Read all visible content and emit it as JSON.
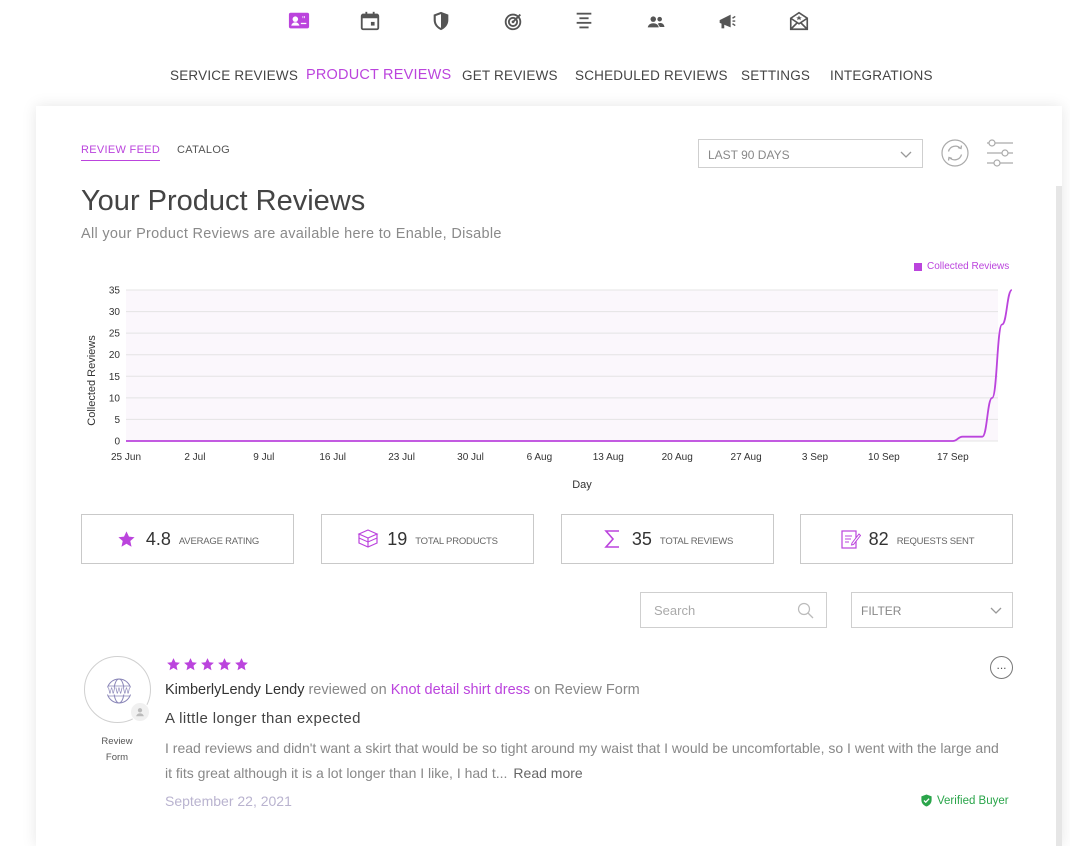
{
  "top_icons": [
    "reviews-icon",
    "calendar-icon",
    "shield-icon",
    "target-icon",
    "align-center-icon",
    "users-icon",
    "megaphone-icon",
    "mail-icon"
  ],
  "nav": [
    {
      "label": "SERVICE REVIEWS"
    },
    {
      "label": "PRODUCT REVIEWS"
    },
    {
      "label": "GET REVIEWS"
    },
    {
      "label": "SCHEDULED REVIEWS"
    },
    {
      "label": "SETTINGS"
    },
    {
      "label": "INTEGRATIONS"
    }
  ],
  "subtabs": {
    "feed": "REVIEW FEED",
    "catalog": "CATALOG"
  },
  "date_range": "LAST 90 DAYS",
  "header": {
    "title": "Your Product Reviews",
    "subtitle": "All your Product Reviews are available here to Enable, Disable"
  },
  "colors": {
    "accent": "#bb44dd",
    "verified": "#2aa54a"
  },
  "chart_data": {
    "type": "line",
    "title": "",
    "xlabel": "Day",
    "ylabel": "Collected Reviews",
    "ylim": [
      0,
      35
    ],
    "yticks": [
      0,
      5,
      10,
      15,
      20,
      25,
      30,
      35
    ],
    "xticks": [
      "25 Jun",
      "2 Jul",
      "9 Jul",
      "16 Jul",
      "23 Jul",
      "30 Jul",
      "6 Aug",
      "13 Aug",
      "20 Aug",
      "27 Aug",
      "3 Sep",
      "10 Sep",
      "17 Sep"
    ],
    "grid": true,
    "legend_position": "top-right",
    "series": [
      {
        "name": "Collected Reviews",
        "x": [
          "25 Jun",
          "17 Sep",
          "18 Sep",
          "20 Sep",
          "21 Sep",
          "22 Sep",
          "23 Sep"
        ],
        "values": [
          0,
          0,
          1,
          1,
          10,
          27,
          35
        ]
      }
    ]
  },
  "stats": [
    {
      "value": "4.8",
      "label": "AVERAGE RATING",
      "icon": "star-icon"
    },
    {
      "value": "19",
      "label": "TOTAL PRODUCTS",
      "icon": "box-icon"
    },
    {
      "value": "35",
      "label": "TOTAL REVIEWS",
      "icon": "sigma-icon"
    },
    {
      "value": "82",
      "label": "REQUESTS SENT",
      "icon": "request-icon"
    }
  ],
  "search_placeholder": "Search",
  "filter_label": "FILTER",
  "review": {
    "rating": 5,
    "source_label": "Review Form",
    "reviewer": "KimberlyLendy Lendy",
    "reviewed_on": " reviewed on ",
    "product": "Knot detail shirt dress",
    "on_text": " on Review Form",
    "title": "A little longer than expected",
    "body": "I read reviews and didn't want a skirt that would be so tight around my waist that I would be uncomfortable, so I went with the large and it fits great although it is a lot longer than I like, I had t...",
    "read_more": "Read more",
    "date": "September 22, 2021",
    "verified": "Verified Buyer"
  }
}
